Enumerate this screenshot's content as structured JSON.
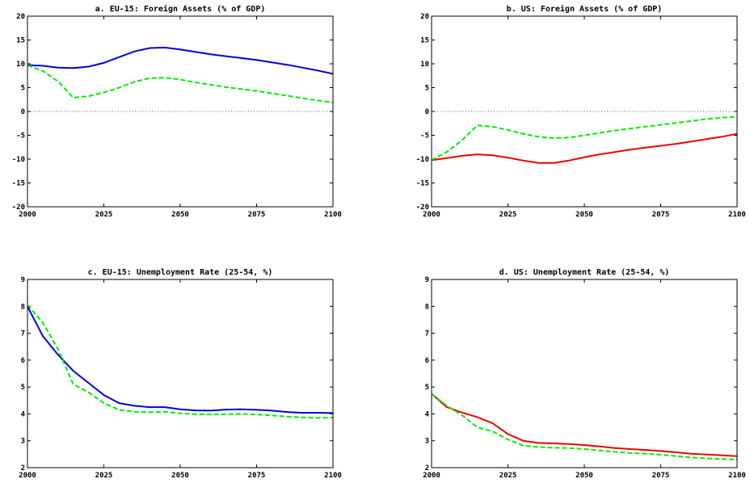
{
  "chart_data": [
    {
      "type": "line",
      "title": "a. EU-15: Foreign Assets (% of GDP)",
      "xlim": [
        2000,
        2100
      ],
      "ylim": [
        -20,
        20
      ],
      "x_ticks": [
        "2000",
        "2025",
        "2050",
        "2075",
        "2100"
      ],
      "y_ticks": [
        "-20",
        "-15",
        "-10",
        "-5",
        "0",
        "5",
        "10",
        "15",
        "20"
      ],
      "zero_line": true,
      "series": [
        {
          "color": "#0000dd",
          "style": "solid",
          "x": [
            2000,
            2005,
            2010,
            2015,
            2020,
            2025,
            2030,
            2035,
            2040,
            2045,
            2050,
            2055,
            2060,
            2065,
            2070,
            2075,
            2080,
            2085,
            2090,
            2095,
            2100
          ],
          "y": [
            9.7,
            9.6,
            9.2,
            9.1,
            9.4,
            10.2,
            11.4,
            12.6,
            13.3,
            13.4,
            13.0,
            12.5,
            12.0,
            11.6,
            11.2,
            10.8,
            10.3,
            9.8,
            9.2,
            8.6,
            7.9
          ]
        },
        {
          "color": "#00ee00",
          "style": "dashed",
          "x": [
            2000,
            2005,
            2010,
            2015,
            2020,
            2025,
            2030,
            2035,
            2040,
            2045,
            2050,
            2055,
            2060,
            2065,
            2070,
            2075,
            2080,
            2085,
            2090,
            2095,
            2100
          ],
          "y": [
            9.7,
            8.5,
            6.3,
            2.9,
            3.2,
            4.0,
            5.0,
            6.2,
            7.0,
            7.1,
            6.7,
            6.1,
            5.6,
            5.1,
            4.7,
            4.3,
            3.8,
            3.3,
            2.8,
            2.3,
            1.9
          ]
        }
      ]
    },
    {
      "type": "line",
      "title": "b. US: Foreign Assets (% of GDP)",
      "xlim": [
        2000,
        2100
      ],
      "ylim": [
        -20,
        20
      ],
      "x_ticks": [
        "2000",
        "2025",
        "2050",
        "2075",
        "2100"
      ],
      "y_ticks": [
        "-20",
        "-15",
        "-10",
        "-5",
        "0",
        "5",
        "10",
        "15",
        "20"
      ],
      "zero_line": true,
      "series": [
        {
          "color": "#ee0000",
          "style": "solid",
          "x": [
            2000,
            2005,
            2010,
            2015,
            2020,
            2025,
            2030,
            2035,
            2040,
            2045,
            2050,
            2055,
            2060,
            2065,
            2070,
            2075,
            2080,
            2085,
            2090,
            2095,
            2100
          ],
          "y": [
            -10.2,
            -9.8,
            -9.3,
            -9.0,
            -9.2,
            -9.7,
            -10.3,
            -10.8,
            -10.8,
            -10.3,
            -9.6,
            -9.0,
            -8.5,
            -8.0,
            -7.6,
            -7.2,
            -6.8,
            -6.3,
            -5.8,
            -5.3,
            -4.7
          ]
        },
        {
          "color": "#00ee00",
          "style": "dashed",
          "x": [
            2000,
            2005,
            2010,
            2015,
            2020,
            2025,
            2030,
            2035,
            2040,
            2045,
            2050,
            2055,
            2060,
            2065,
            2070,
            2075,
            2080,
            2085,
            2090,
            2095,
            2100
          ],
          "y": [
            -10.2,
            -8.5,
            -6.0,
            -2.9,
            -3.2,
            -3.9,
            -4.7,
            -5.3,
            -5.6,
            -5.5,
            -5.0,
            -4.5,
            -4.0,
            -3.6,
            -3.2,
            -2.8,
            -2.4,
            -2.0,
            -1.6,
            -1.3,
            -1.1
          ]
        }
      ]
    },
    {
      "type": "line",
      "title": "c. EU-15: Unemployment Rate (25-54, %)",
      "xlim": [
        2000,
        2100
      ],
      "ylim": [
        2,
        9
      ],
      "x_ticks": [
        "2000",
        "2025",
        "2050",
        "2075",
        "2100"
      ],
      "y_ticks": [
        "2",
        "3",
        "4",
        "5",
        "6",
        "7",
        "8",
        "9"
      ],
      "zero_line": false,
      "series": [
        {
          "color": "#0000dd",
          "style": "solid",
          "x": [
            2000,
            2005,
            2010,
            2015,
            2020,
            2025,
            2030,
            2035,
            2040,
            2045,
            2050,
            2055,
            2060,
            2065,
            2070,
            2075,
            2080,
            2085,
            2090,
            2095,
            2100
          ],
          "y": [
            8.0,
            6.9,
            6.2,
            5.6,
            5.15,
            4.7,
            4.4,
            4.3,
            4.25,
            4.25,
            4.17,
            4.13,
            4.12,
            4.16,
            4.17,
            4.15,
            4.12,
            4.07,
            4.04,
            4.04,
            4.03
          ]
        },
        {
          "color": "#00ee00",
          "style": "dashed",
          "x": [
            2000,
            2005,
            2010,
            2015,
            2020,
            2025,
            2030,
            2035,
            2040,
            2045,
            2050,
            2055,
            2060,
            2065,
            2070,
            2075,
            2080,
            2085,
            2090,
            2095,
            2100
          ],
          "y": [
            8.05,
            7.4,
            6.4,
            5.1,
            4.8,
            4.4,
            4.15,
            4.08,
            4.06,
            4.08,
            4.02,
            3.99,
            3.98,
            3.99,
            4.0,
            3.98,
            3.94,
            3.9,
            3.87,
            3.85,
            3.86
          ]
        }
      ]
    },
    {
      "type": "line",
      "title": "d. US: Unemployment Rate (25-54, %)",
      "xlim": [
        2000,
        2100
      ],
      "ylim": [
        2,
        9
      ],
      "x_ticks": [
        "2000",
        "2025",
        "2050",
        "2075",
        "2100"
      ],
      "y_ticks": [
        "2",
        "3",
        "4",
        "5",
        "6",
        "7",
        "8",
        "9"
      ],
      "zero_line": false,
      "series": [
        {
          "color": "#ee0000",
          "style": "solid",
          "x": [
            2000,
            2005,
            2010,
            2015,
            2020,
            2025,
            2030,
            2035,
            2040,
            2045,
            2050,
            2055,
            2060,
            2065,
            2070,
            2075,
            2080,
            2085,
            2090,
            2095,
            2100
          ],
          "y": [
            4.75,
            4.25,
            4.05,
            3.88,
            3.65,
            3.25,
            3.0,
            2.92,
            2.9,
            2.88,
            2.84,
            2.79,
            2.73,
            2.69,
            2.66,
            2.62,
            2.57,
            2.52,
            2.49,
            2.46,
            2.43
          ]
        },
        {
          "color": "#00ee00",
          "style": "dashed",
          "x": [
            2000,
            2005,
            2010,
            2015,
            2020,
            2025,
            2030,
            2035,
            2040,
            2045,
            2050,
            2055,
            2060,
            2065,
            2070,
            2075,
            2080,
            2085,
            2090,
            2095,
            2100
          ],
          "y": [
            4.75,
            4.3,
            3.95,
            3.5,
            3.35,
            3.05,
            2.82,
            2.77,
            2.74,
            2.73,
            2.69,
            2.64,
            2.59,
            2.55,
            2.52,
            2.48,
            2.43,
            2.38,
            2.35,
            2.32,
            2.3
          ]
        }
      ]
    }
  ]
}
